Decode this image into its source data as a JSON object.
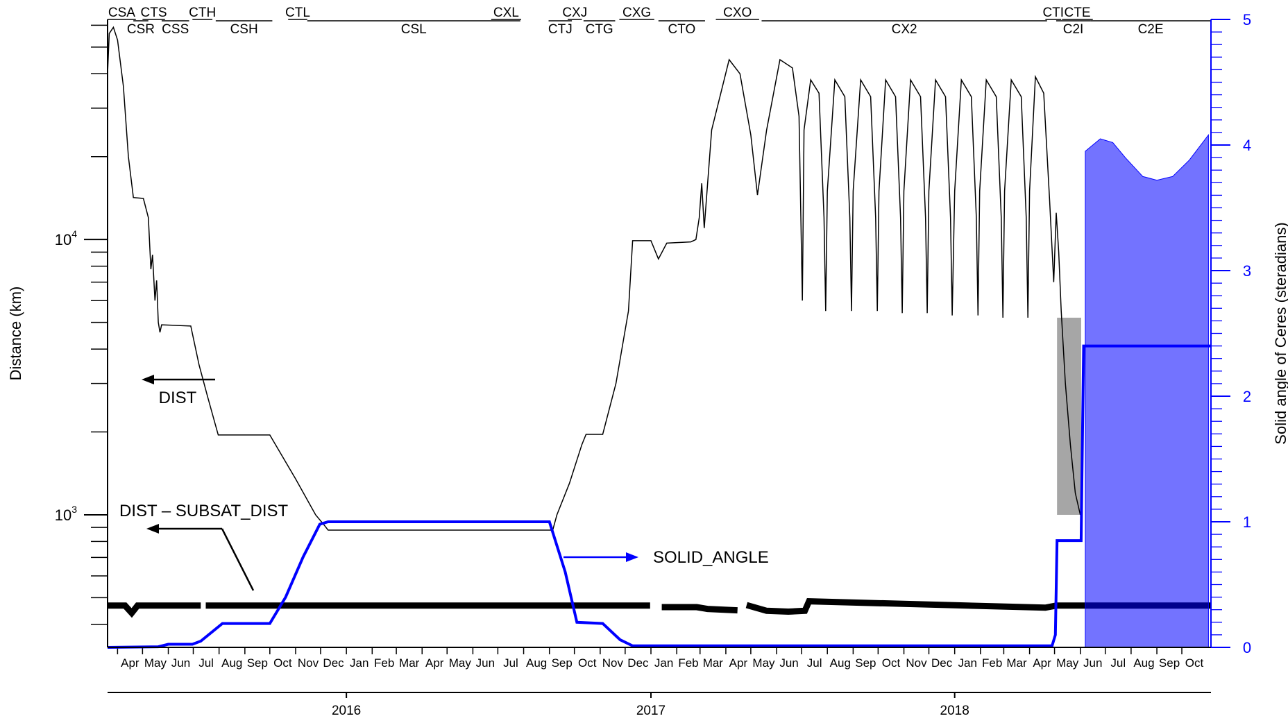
{
  "chart_data": {
    "type": "line",
    "x_axis": {
      "start": "2015-03-20",
      "end": "2018-11-05",
      "month_labels": [
        {
          "label": "Apr",
          "date": "2015-04-01"
        },
        {
          "label": "May",
          "date": "2015-05-01"
        },
        {
          "label": "Jun",
          "date": "2015-06-01"
        },
        {
          "label": "Jul",
          "date": "2015-07-01"
        },
        {
          "label": "Aug",
          "date": "2015-08-01"
        },
        {
          "label": "Sep",
          "date": "2015-09-01"
        },
        {
          "label": "Oct",
          "date": "2015-10-01"
        },
        {
          "label": "Nov",
          "date": "2015-11-01"
        },
        {
          "label": "Dec",
          "date": "2015-12-01"
        },
        {
          "label": "Jan",
          "date": "2016-01-01"
        },
        {
          "label": "Feb",
          "date": "2016-02-01"
        },
        {
          "label": "Mar",
          "date": "2016-03-01"
        },
        {
          "label": "Apr",
          "date": "2016-04-01"
        },
        {
          "label": "May",
          "date": "2016-05-01"
        },
        {
          "label": "Jun",
          "date": "2016-06-01"
        },
        {
          "label": "Jul",
          "date": "2016-07-01"
        },
        {
          "label": "Aug",
          "date": "2016-08-01"
        },
        {
          "label": "Sep",
          "date": "2016-09-01"
        },
        {
          "label": "Oct",
          "date": "2016-10-01"
        },
        {
          "label": "Nov",
          "date": "2016-11-01"
        },
        {
          "label": "Dec",
          "date": "2016-12-01"
        },
        {
          "label": "Jan",
          "date": "2017-01-01"
        },
        {
          "label": "Feb",
          "date": "2017-02-01"
        },
        {
          "label": "Mar",
          "date": "2017-03-01"
        },
        {
          "label": "Apr",
          "date": "2017-04-01"
        },
        {
          "label": "May",
          "date": "2017-05-01"
        },
        {
          "label": "Jun",
          "date": "2017-06-01"
        },
        {
          "label": "Jul",
          "date": "2017-07-01"
        },
        {
          "label": "Aug",
          "date": "2017-08-01"
        },
        {
          "label": "Sep",
          "date": "2017-09-01"
        },
        {
          "label": "Oct",
          "date": "2017-10-01"
        },
        {
          "label": "Nov",
          "date": "2017-11-01"
        },
        {
          "label": "Dec",
          "date": "2017-12-01"
        },
        {
          "label": "Jan",
          "date": "2018-01-01"
        },
        {
          "label": "Feb",
          "date": "2018-02-01"
        },
        {
          "label": "Mar",
          "date": "2018-03-01"
        },
        {
          "label": "Apr",
          "date": "2018-04-01"
        },
        {
          "label": "May",
          "date": "2018-05-01"
        },
        {
          "label": "Jun",
          "date": "2018-06-01"
        },
        {
          "label": "Jul",
          "date": "2018-07-01"
        },
        {
          "label": "Aug",
          "date": "2018-08-01"
        },
        {
          "label": "Sep",
          "date": "2018-09-01"
        },
        {
          "label": "Oct",
          "date": "2018-10-01"
        }
      ],
      "year_labels": [
        {
          "label": "2016",
          "date": "2016-01-01"
        },
        {
          "label": "2017",
          "date": "2017-01-01"
        },
        {
          "label": "2018",
          "date": "2018-01-01"
        }
      ]
    },
    "y_left": {
      "label": "Distance (km)",
      "scale": "log",
      "range": [
        330,
        63000
      ],
      "tick_labels": [
        {
          "base": "10",
          "exp": "3",
          "value": 1000
        },
        {
          "base": "10",
          "exp": "4",
          "value": 10000
        }
      ]
    },
    "y_right": {
      "label": "Solid angle of Ceres (steradians)",
      "range": [
        0,
        5
      ],
      "ticks": [
        "0",
        "1",
        "2",
        "3",
        "4",
        "5"
      ]
    },
    "series": [
      {
        "name": "DIST",
        "color": "#000000",
        "points": [
          [
            "2015-03-20",
            40000
          ],
          [
            "2015-03-22",
            56000
          ],
          [
            "2015-03-27",
            59000
          ],
          [
            "2015-04-01",
            53000
          ],
          [
            "2015-04-08",
            36000
          ],
          [
            "2015-04-14",
            20000
          ],
          [
            "2015-04-20",
            14200
          ],
          [
            "2015-05-02",
            14100
          ],
          [
            "2015-05-08",
            12000
          ],
          [
            "2015-05-11",
            7800
          ],
          [
            "2015-05-13",
            8800
          ],
          [
            "2015-05-16",
            6000
          ],
          [
            "2015-05-18",
            7100
          ],
          [
            "2015-05-20",
            5000
          ],
          [
            "2015-05-22",
            4600
          ],
          [
            "2015-05-24",
            4900
          ],
          [
            "2015-06-28",
            4850
          ],
          [
            "2015-07-08",
            3500
          ],
          [
            "2015-07-18",
            2700
          ],
          [
            "2015-07-28",
            2100
          ],
          [
            "2015-07-31",
            1950
          ],
          [
            "2015-10-01",
            1950
          ],
          [
            "2015-11-01",
            1350
          ],
          [
            "2015-11-25",
            1000
          ],
          [
            "2015-12-05",
            920
          ],
          [
            "2015-12-10",
            880
          ],
          [
            "2016-09-05",
            880
          ],
          [
            "2016-09-10",
            1000
          ],
          [
            "2016-09-25",
            1300
          ],
          [
            "2016-10-10",
            1800
          ],
          [
            "2016-10-15",
            1960
          ],
          [
            "2016-11-04",
            1960
          ],
          [
            "2016-11-20",
            3000
          ],
          [
            "2016-12-05",
            5500
          ],
          [
            "2016-12-10",
            9900
          ],
          [
            "2017-01-01",
            9900
          ],
          [
            "2017-01-10",
            8500
          ],
          [
            "2017-01-20",
            9700
          ],
          [
            "2017-02-18",
            9800
          ],
          [
            "2017-02-24",
            10000
          ],
          [
            "2017-02-28",
            12000
          ],
          [
            "2017-03-03",
            16000
          ],
          [
            "2017-03-06",
            11000
          ],
          [
            "2017-03-15",
            25000
          ],
          [
            "2017-04-05",
            45000
          ],
          [
            "2017-04-18",
            40000
          ],
          [
            "2017-05-01",
            24000
          ],
          [
            "2017-05-09",
            14500
          ],
          [
            "2017-05-20",
            25000
          ],
          [
            "2017-06-05",
            45000
          ],
          [
            "2017-06-20",
            42000
          ],
          [
            "2017-06-28",
            28000
          ],
          [
            "2017-07-02",
            6000
          ],
          [
            "2017-07-04",
            25000
          ],
          [
            "2017-07-12",
            38000
          ],
          [
            "2017-07-22",
            34000
          ],
          [
            "2017-07-28",
            12000
          ],
          [
            "2017-07-30",
            5500
          ],
          [
            "2017-08-01",
            15000
          ],
          [
            "2017-08-10",
            38000
          ],
          [
            "2017-08-22",
            33000
          ],
          [
            "2017-08-28",
            12000
          ],
          [
            "2017-08-30",
            5500
          ],
          [
            "2017-09-01",
            15000
          ],
          [
            "2017-09-10",
            38000
          ],
          [
            "2017-09-22",
            33000
          ],
          [
            "2017-09-28",
            12000
          ],
          [
            "2017-09-30",
            5500
          ],
          [
            "2017-10-02",
            15000
          ],
          [
            "2017-10-10",
            38000
          ],
          [
            "2017-10-22",
            33000
          ],
          [
            "2017-10-28",
            12000
          ],
          [
            "2017-10-30",
            5400
          ],
          [
            "2017-11-01",
            15000
          ],
          [
            "2017-11-09",
            38000
          ],
          [
            "2017-11-21",
            33000
          ],
          [
            "2017-11-27",
            12000
          ],
          [
            "2017-11-29",
            5400
          ],
          [
            "2017-12-01",
            15000
          ],
          [
            "2017-12-09",
            38000
          ],
          [
            "2017-12-21",
            33000
          ],
          [
            "2017-12-27",
            12000
          ],
          [
            "2017-12-29",
            5300
          ],
          [
            "2018-01-01",
            15000
          ],
          [
            "2018-01-09",
            38000
          ],
          [
            "2018-01-21",
            33000
          ],
          [
            "2018-01-27",
            12000
          ],
          [
            "2018-01-29",
            5300
          ],
          [
            "2018-01-31",
            15000
          ],
          [
            "2018-02-08",
            38000
          ],
          [
            "2018-02-20",
            33000
          ],
          [
            "2018-02-26",
            12000
          ],
          [
            "2018-02-28",
            5200
          ],
          [
            "2018-03-02",
            15000
          ],
          [
            "2018-03-10",
            38000
          ],
          [
            "2018-03-22",
            33000
          ],
          [
            "2018-03-28",
            12000
          ],
          [
            "2018-03-30",
            5200
          ],
          [
            "2018-04-01",
            15000
          ],
          [
            "2018-04-08",
            39000
          ],
          [
            "2018-04-18",
            34000
          ],
          [
            "2018-04-25",
            14000
          ],
          [
            "2018-04-30",
            7000
          ],
          [
            "2018-05-03",
            12500
          ],
          [
            "2018-05-06",
            9000
          ],
          [
            "2018-05-09",
            5500
          ],
          [
            "2018-05-14",
            3000
          ],
          [
            "2018-05-20",
            1800
          ],
          [
            "2018-05-26",
            1200
          ],
          [
            "2018-06-01",
            1000
          ]
        ]
      },
      {
        "name": "DIST – SUBSAT_DIST",
        "color": "#000000",
        "points": [
          [
            "2015-03-20",
            468
          ],
          [
            "2015-04-10",
            468
          ],
          [
            "2015-04-18",
            440
          ],
          [
            "2015-04-25",
            468
          ],
          [
            "2015-07-10",
            468
          ],
          [
            "2015-07-12",
            null
          ],
          [
            "2015-07-16",
            468
          ],
          [
            "2016-12-31",
            468
          ],
          [
            "2017-01-08",
            null
          ],
          [
            "2017-01-14",
            462
          ],
          [
            "2017-02-25",
            462
          ],
          [
            "2017-03-10",
            455
          ],
          [
            "2017-04-15",
            450
          ],
          [
            "2017-04-20",
            null
          ],
          [
            "2017-04-26",
            470
          ],
          [
            "2017-05-20",
            448
          ],
          [
            "2017-06-15",
            445
          ],
          [
            "2017-07-05",
            448
          ],
          [
            "2017-07-10",
            485
          ],
          [
            "2018-04-20",
            460
          ],
          [
            "2018-05-03",
            468
          ],
          [
            "2018-11-05",
            468
          ]
        ]
      },
      {
        "name": "SOLID_ANGLE",
        "color": "#0000ff",
        "points": [
          [
            "2015-03-20",
            0.0
          ],
          [
            "2015-05-20",
            0.005
          ],
          [
            "2015-06-01",
            0.025
          ],
          [
            "2015-06-30",
            0.025
          ],
          [
            "2015-07-10",
            0.05
          ],
          [
            "2015-08-05",
            0.19
          ],
          [
            "2015-10-01",
            0.19
          ],
          [
            "2015-10-20",
            0.4
          ],
          [
            "2015-11-10",
            0.72
          ],
          [
            "2015-11-30",
            0.98
          ],
          [
            "2015-12-10",
            1.0
          ],
          [
            "2016-09-01",
            1.0
          ],
          [
            "2016-09-20",
            0.6
          ],
          [
            "2016-10-04",
            0.2
          ],
          [
            "2016-11-04",
            0.19
          ],
          [
            "2016-11-25",
            0.06
          ],
          [
            "2016-12-10",
            0.012
          ],
          [
            "2018-04-28",
            0.012
          ],
          [
            "2018-05-02",
            0.1
          ],
          [
            "2018-05-04",
            0.85
          ],
          [
            "2018-06-02",
            0.85
          ],
          [
            "2018-06-05",
            2.4
          ],
          [
            "2018-11-05",
            2.4
          ]
        ],
        "envelope_top": [
          [
            "2018-06-07",
            3.95
          ],
          [
            "2018-06-25",
            4.05
          ],
          [
            "2018-07-10",
            4.02
          ],
          [
            "2018-07-25",
            3.9
          ],
          [
            "2018-08-15",
            3.75
          ],
          [
            "2018-09-01",
            3.72
          ],
          [
            "2018-09-20",
            3.75
          ],
          [
            "2018-10-10",
            3.88
          ],
          [
            "2018-11-02",
            4.08
          ]
        ]
      }
    ],
    "annotations": [
      {
        "text": "DIST",
        "color": "#000000"
      },
      {
        "text": "DIST – SUBSAT_DIST",
        "color": "#000000"
      },
      {
        "text": "SOLID_ANGLE",
        "color": "#0000ff"
      }
    ],
    "phases_top": [
      {
        "label": "CSA",
        "start": "2015-03-20",
        "end": "2015-04-23"
      },
      {
        "label": "CTS",
        "start": "2015-05-01",
        "end": "2015-05-28"
      },
      {
        "label": "CTH",
        "start": "2015-06-30",
        "end": "2015-07-24"
      },
      {
        "label": "CTL",
        "start": "2015-10-23",
        "end": "2015-11-15"
      },
      {
        "label": "CXL",
        "start": "2016-06-23",
        "end": "2016-07-29"
      },
      {
        "label": "CXJ",
        "start": "2016-09-23",
        "end": "2016-10-10"
      },
      {
        "label": "CXG",
        "start": "2016-11-24",
        "end": "2017-01-05"
      },
      {
        "label": "CXO",
        "start": "2017-03-20",
        "end": "2017-05-11"
      },
      {
        "label": "CTI",
        "start": "2018-04-20",
        "end": "2018-05-09"
      },
      {
        "label": "CTE",
        "start": "2018-05-10",
        "end": "2018-06-16"
      }
    ],
    "phases_bottom": [
      {
        "label": "CSR",
        "start": "2015-04-20",
        "end": "2015-05-08"
      },
      {
        "label": "CSS",
        "start": "2015-05-24",
        "end": "2015-06-26"
      },
      {
        "label": "CSH",
        "start": "2015-07-28",
        "end": "2015-10-04"
      },
      {
        "label": "CSL",
        "start": "2015-11-15",
        "end": "2016-07-28"
      },
      {
        "label": "CTJ",
        "start": "2016-08-31",
        "end": "2016-09-28"
      },
      {
        "label": "CTG",
        "start": "2016-10-12",
        "end": "2016-11-19"
      },
      {
        "label": "CTO",
        "start": "2017-01-10",
        "end": "2017-03-07"
      },
      {
        "label": "CX2",
        "start": "2017-05-14",
        "end": "2018-04-22"
      },
      {
        "label": "C2I",
        "start": "2018-05-03",
        "end": "2018-06-13"
      },
      {
        "label": "C2E",
        "start": "2018-06-13",
        "end": "2018-11-05"
      }
    ]
  }
}
